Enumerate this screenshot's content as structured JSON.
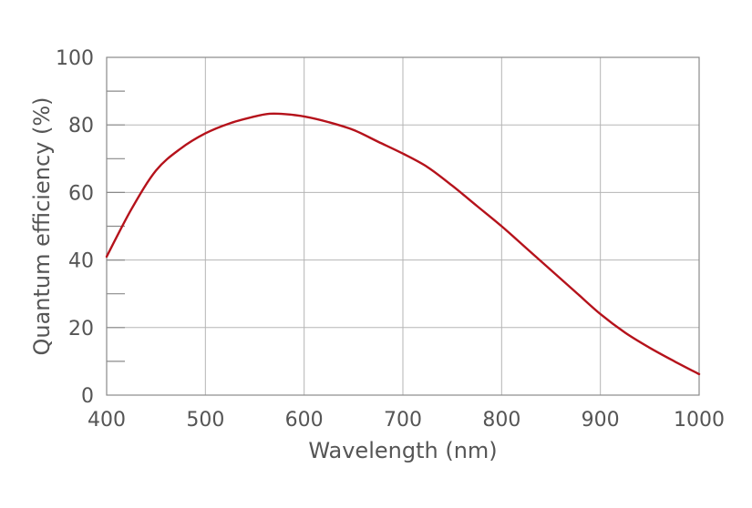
{
  "chart_data": {
    "type": "line",
    "title": "",
    "xlabel": "Wavelength (nm)",
    "ylabel": "Quantum efficiency (%)",
    "xlim": [
      400,
      1000
    ],
    "ylim": [
      0,
      100
    ],
    "x_ticks": [
      400,
      500,
      600,
      700,
      800,
      900,
      1000
    ],
    "y_ticks": [
      0,
      20,
      40,
      60,
      80,
      100
    ],
    "y_minor_ticks": [
      10,
      30,
      50,
      70,
      90
    ],
    "x_tick_labels": [
      "400",
      "500",
      "600",
      "700",
      "800",
      "900",
      "1000"
    ],
    "y_tick_labels": [
      "0",
      "20",
      "40",
      "60",
      "80",
      "100"
    ],
    "grid": true,
    "legend": "none",
    "series": [
      {
        "name": "Quantum efficiency",
        "color": "#b5121b",
        "x": [
          400,
          425,
          450,
          475,
          500,
          525,
          550,
          565,
          580,
          600,
          625,
          650,
          675,
          700,
          725,
          750,
          775,
          800,
          825,
          850,
          875,
          900,
          925,
          950,
          975,
          1000
        ],
        "y": [
          41,
          55,
          66.5,
          73,
          77.5,
          80.5,
          82.5,
          83.3,
          83.2,
          82.5,
          80.8,
          78.5,
          75,
          71.5,
          67.5,
          62,
          56,
          50,
          43.5,
          37,
          30.5,
          24,
          18.5,
          14,
          10,
          6.2
        ]
      }
    ]
  }
}
